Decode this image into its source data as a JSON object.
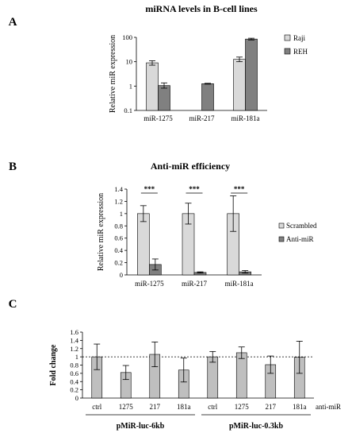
{
  "chart_data": [
    {
      "type": "bar",
      "panel": "A",
      "title": "miRNA levels in B-cell lines",
      "xlabel": "",
      "ylabel": "Relative miR expression",
      "yscale": "log",
      "ylim": [
        0.1,
        100
      ],
      "yticks": [
        "0.1",
        "1",
        "10",
        "100"
      ],
      "categories": [
        "miR-1275",
        "miR-217",
        "miR-181a"
      ],
      "series": [
        {
          "name": "Raji",
          "color": "#d9d9d9",
          "values": [
            9.0,
            null,
            12.5
          ],
          "err_low": [
            7.2,
            null,
            10.0
          ],
          "err_high": [
            11.0,
            null,
            15.5
          ]
        },
        {
          "name": "REH",
          "color": "#808080",
          "values": [
            1.05,
            1.25,
            85.0
          ],
          "err_low": [
            0.82,
            1.2,
            78.0
          ],
          "err_high": [
            1.35,
            1.3,
            92.0
          ]
        }
      ],
      "legend_position": "right"
    },
    {
      "type": "bar",
      "panel": "B",
      "title": "Anti-miR efficiency",
      "xlabel": "",
      "ylabel": "Relative miR expression",
      "ylim": [
        0,
        1.4
      ],
      "yticks": [
        "0",
        "0.2",
        "0.4",
        "0.6",
        "0.8",
        "1",
        "1.2",
        "1.4"
      ],
      "categories": [
        "miR-1275",
        "miR-217",
        "miR-181a"
      ],
      "series": [
        {
          "name": "Scrambled",
          "color": "#d9d9d9",
          "values": [
            1.0,
            1.0,
            1.0
          ],
          "err": [
            0.13,
            0.17,
            0.29
          ]
        },
        {
          "name": "Anti-miR",
          "color": "#808080",
          "values": [
            0.17,
            0.04,
            0.05
          ],
          "err": [
            0.09,
            0.01,
            0.02
          ]
        }
      ],
      "significance": [
        "***",
        "***",
        "***"
      ],
      "legend_position": "right"
    },
    {
      "type": "bar",
      "panel": "C",
      "title": "",
      "xlabel": "",
      "ylabel": "Fold change",
      "ylim": [
        0,
        1.6
      ],
      "yticks": [
        "0",
        "0.2",
        "0.4",
        "0.6",
        "0.8",
        "1",
        "1.2",
        "1.4",
        "1.6"
      ],
      "reference_line": 1,
      "categories": [
        "ctrl",
        "1275",
        "217",
        "181a",
        "ctrl",
        "1275",
        "217",
        "181a"
      ],
      "category_axis_label": "anti-miR",
      "groups": [
        "pMiR-luc-6kb",
        "pMiR-luc-0.3kb"
      ],
      "series": [
        {
          "name": "",
          "color": "#bfbfbf",
          "values": [
            1.0,
            0.62,
            1.06,
            0.68,
            1.0,
            1.1,
            0.81,
            0.99
          ],
          "err": [
            0.31,
            0.17,
            0.3,
            0.29,
            0.13,
            0.14,
            0.21,
            0.39
          ]
        }
      ]
    }
  ]
}
